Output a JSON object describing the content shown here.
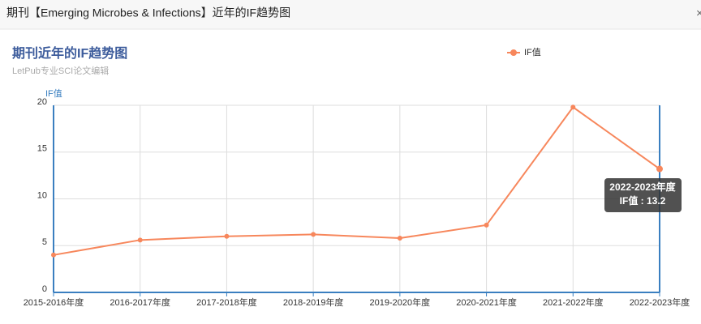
{
  "header": {
    "title": "期刊【Emerging Microbes & Infections】近年的IF趋势图",
    "close": "×"
  },
  "chart_data": {
    "type": "line",
    "title": "期刊近年的IF趋势图",
    "subtitle": "LetPub专业SCI论文编辑",
    "y_label": "IF值",
    "categories": [
      "2015-2016年度",
      "2016-2017年度",
      "2017-2018年度",
      "2018-2019年度",
      "2019-2020年度",
      "2020-2021年度",
      "2021-2022年度",
      "2022-2023年度"
    ],
    "series": [
      {
        "name": "IF值",
        "color": "#f7875c",
        "values": [
          4.0,
          5.6,
          6.0,
          6.2,
          5.8,
          7.2,
          19.8,
          13.2
        ]
      }
    ],
    "ylim": [
      0,
      20
    ],
    "yticks": [
      0,
      5,
      10,
      15,
      20
    ],
    "grid": true,
    "legend": "top-right",
    "tooltip": {
      "title": "2022-2023年度",
      "text": "IF值 : 13.2"
    }
  }
}
